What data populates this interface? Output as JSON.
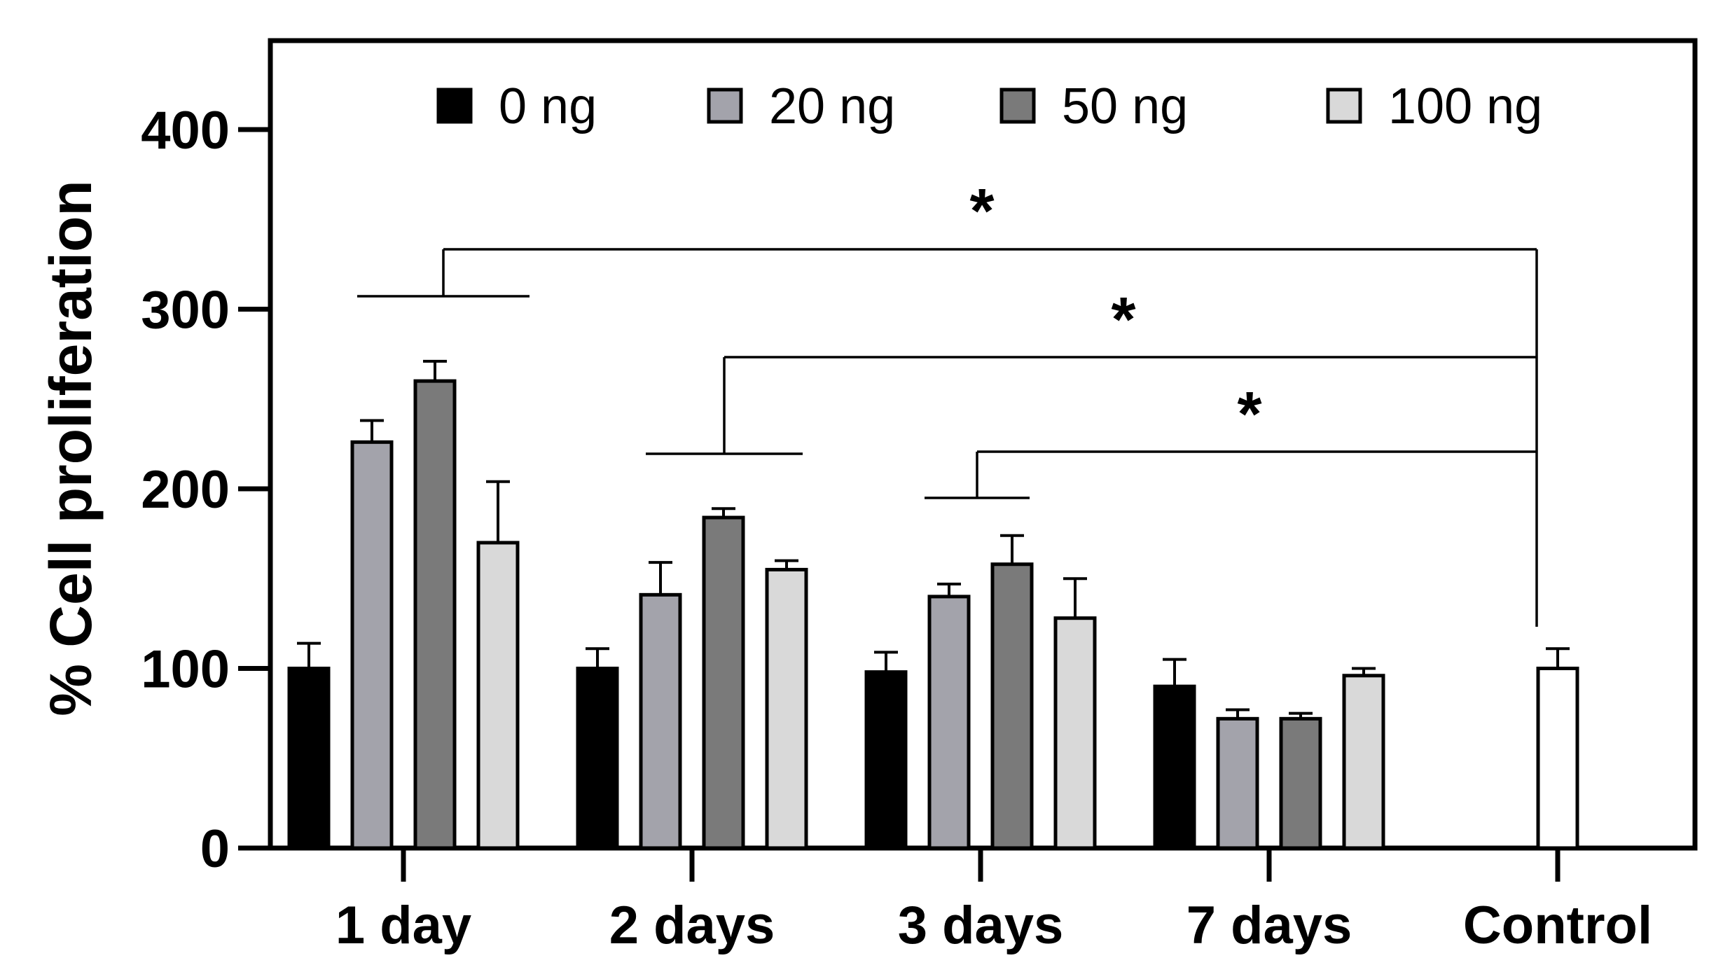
{
  "chart_data": {
    "type": "bar",
    "title": "",
    "xlabel": "",
    "ylabel": "% Cell proliferation",
    "ylim": [
      0,
      450
    ],
    "yticks": [
      0,
      100,
      200,
      300,
      400
    ],
    "grid": false,
    "legend_position": "top",
    "categories": [
      "1 day",
      "2 days",
      "3 days",
      "7 days"
    ],
    "series": [
      {
        "name": "0 ng",
        "color": "#000000",
        "values": [
          100,
          100,
          98,
          90
        ],
        "errors": [
          14,
          11,
          11,
          15
        ]
      },
      {
        "name": "20 ng",
        "color": "#a3a3ab",
        "values": [
          226,
          141,
          140,
          72
        ],
        "errors": [
          12,
          18,
          7,
          5
        ]
      },
      {
        "name": "50 ng",
        "color": "#7a7a7a",
        "values": [
          260,
          184,
          158,
          72
        ],
        "errors": [
          11,
          5,
          16,
          3
        ]
      },
      {
        "name": "100 ng",
        "color": "#d9d9d9",
        "values": [
          170,
          155,
          128,
          96
        ],
        "errors": [
          34,
          5,
          22,
          4
        ]
      }
    ],
    "control": {
      "label": "Control",
      "value": 100,
      "error": 11,
      "color": "#ffffff"
    },
    "significance": [
      {
        "label": "*",
        "group": "1 day"
      },
      {
        "label": "*",
        "group": "2 days"
      },
      {
        "label": "*",
        "group": "3 days"
      }
    ]
  }
}
